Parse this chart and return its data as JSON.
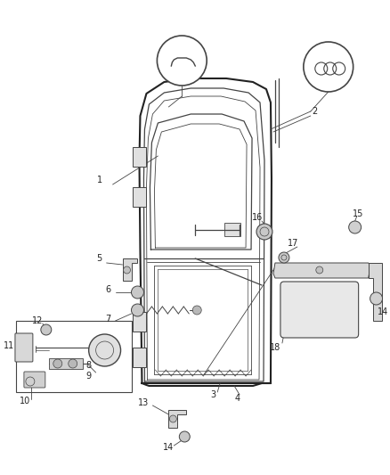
{
  "bg_color": "#ffffff",
  "fig_width": 4.38,
  "fig_height": 5.33,
  "dpi": 100,
  "line_color": "#444444",
  "line_color_dark": "#222222"
}
